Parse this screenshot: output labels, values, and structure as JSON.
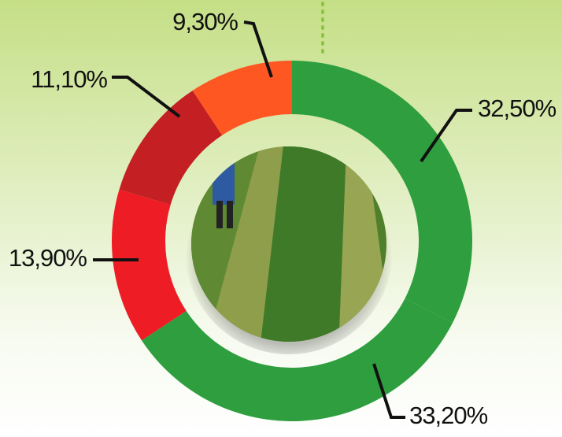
{
  "chart_data": {
    "type": "donut",
    "categories": [
      null,
      null,
      null,
      null,
      null
    ],
    "values": [
      32.5,
      33.2,
      13.9,
      11.1,
      9.3
    ],
    "value_labels": [
      "32,50%",
      "33,20%",
      "13,90%",
      "11,10%",
      "9,30%"
    ],
    "colors": [
      "#2e9e3e",
      "#2e9e3e",
      "#ee1c24",
      "#c42024",
      "#ff5722"
    ]
  }
}
